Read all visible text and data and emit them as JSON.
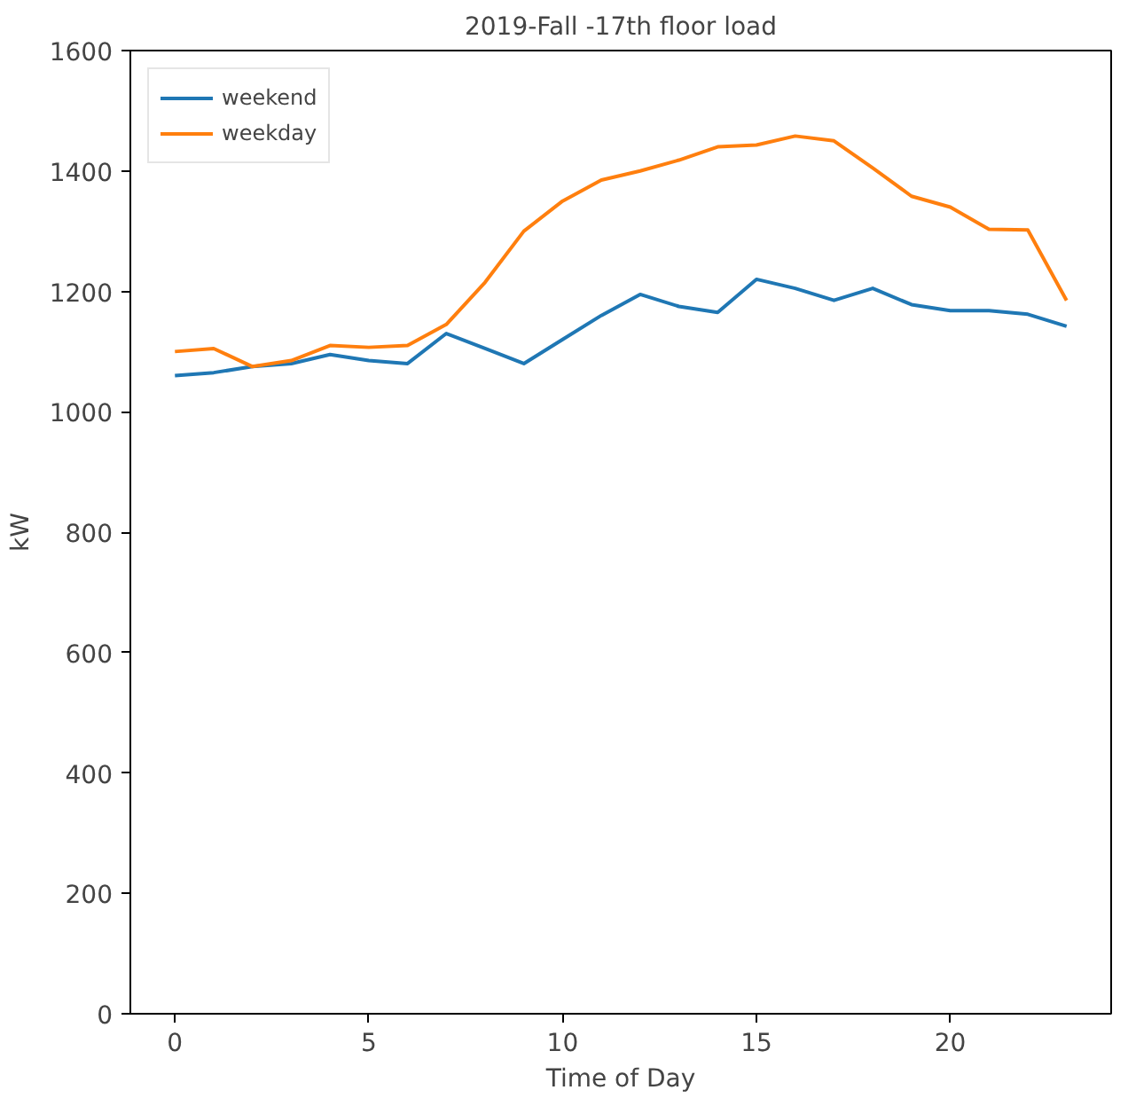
{
  "chart_data": {
    "type": "line",
    "title": "2019-Fall -17th floor load",
    "xlabel": "Time of Day",
    "ylabel": "kW",
    "x": [
      0,
      1,
      2,
      3,
      4,
      5,
      6,
      7,
      8,
      9,
      10,
      11,
      12,
      13,
      14,
      15,
      16,
      17,
      18,
      19,
      20,
      21,
      22,
      23
    ],
    "series": [
      {
        "name": "weekend",
        "color": "#1f77b4",
        "values": [
          1060,
          1065,
          1075,
          1080,
          1095,
          1085,
          1080,
          1130,
          1105,
          1080,
          1120,
          1160,
          1195,
          1175,
          1165,
          1220,
          1205,
          1185,
          1205,
          1178,
          1168,
          1168,
          1162,
          1142
        ]
      },
      {
        "name": "weekday",
        "color": "#ff7f0e",
        "values": [
          1100,
          1105,
          1075,
          1085,
          1110,
          1107,
          1110,
          1145,
          1215,
          1300,
          1350,
          1385,
          1400,
          1418,
          1440,
          1443,
          1458,
          1450,
          1405,
          1358,
          1340,
          1303,
          1302,
          1185
        ]
      }
    ],
    "xlim": [
      -1.15,
      24.15
    ],
    "ylim": [
      0,
      1600
    ],
    "xticks": [
      0,
      5,
      10,
      15,
      20
    ],
    "yticks": [
      0,
      200,
      400,
      600,
      800,
      1000,
      1200,
      1400,
      1600
    ],
    "grid": false,
    "legend": "top left",
    "marker": "none",
    "line_style": "solid"
  }
}
